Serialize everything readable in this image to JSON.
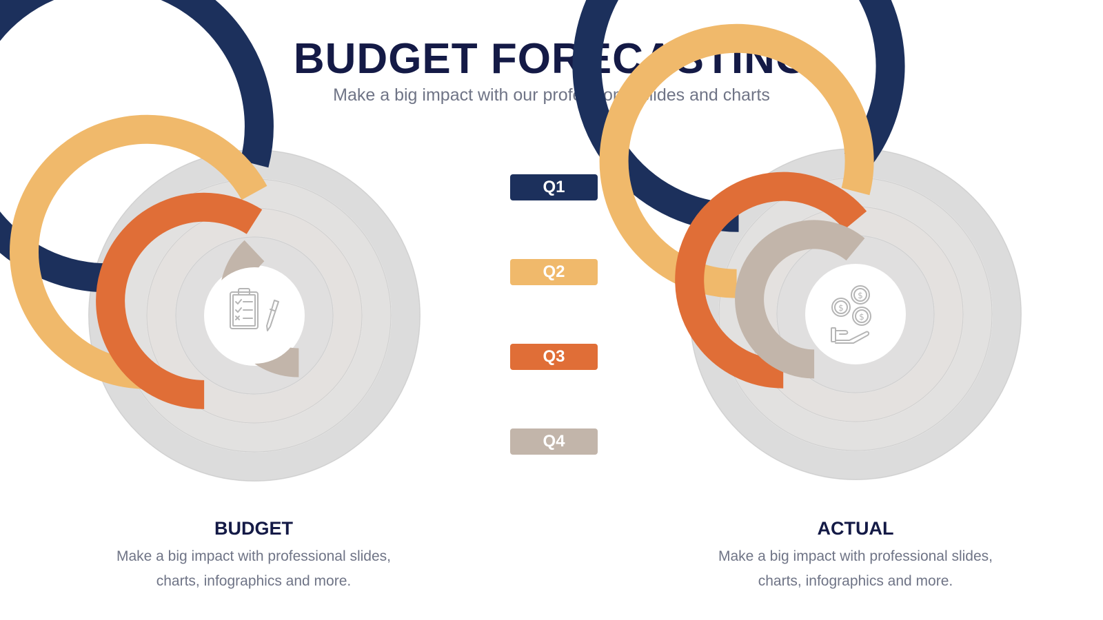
{
  "title": "BUDGET FORECASTING",
  "subtitle": "Make a big impact with our professional slides and charts",
  "legend": [
    {
      "label": "Q1",
      "color": "#1c305c"
    },
    {
      "label": "Q2",
      "color": "#f0b96b"
    },
    {
      "label": "Q3",
      "color": "#e06e37"
    },
    {
      "label": "Q4",
      "color": "#c2b5aa"
    }
  ],
  "colors": {
    "track": [
      "#dcdcdc",
      "#e2e1e0",
      "#e4e1df",
      "#e0dfdf"
    ],
    "center": "#ffffff",
    "icon": "#b5b5b5"
  },
  "chart_data": [
    {
      "type": "radial-bar",
      "title": "BUDGET",
      "description": "Make a big impact with professional slides, charts, infographics and more.",
      "center_icon": "clipboard-pen-icon",
      "categories": [
        "Q1",
        "Q2",
        "Q3",
        "Q4"
      ],
      "values_percent": [
        79,
        67,
        59,
        38
      ],
      "max_percent": 100
    },
    {
      "type": "radial-bar",
      "title": "ACTUAL",
      "description": "Make a big impact with professional slides, charts, infographics and more.",
      "center_icon": "coins-hand-icon",
      "categories": [
        "Q1",
        "Q2",
        "Q3",
        "Q4"
      ],
      "values_percent": [
        86,
        79,
        64,
        61
      ],
      "max_percent": 100
    }
  ]
}
